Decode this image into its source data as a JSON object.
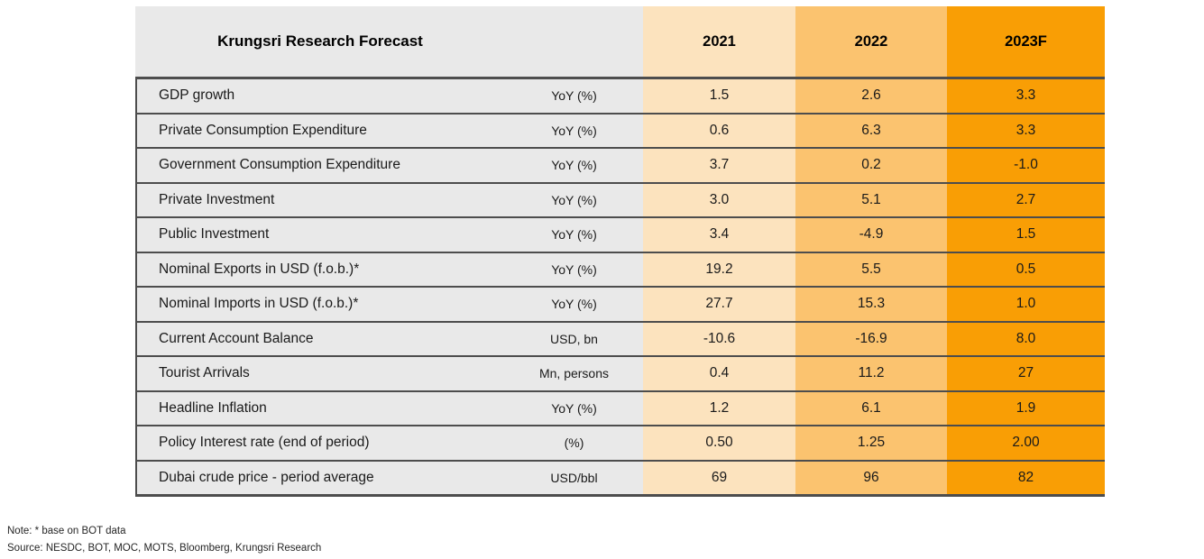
{
  "chart_data": {
    "type": "table",
    "title": "Krungsri Research Forecast",
    "year_columns": [
      "2021",
      "2022",
      "2023F"
    ],
    "rows": [
      {
        "label": "GDP growth",
        "unit": "YoY (%)",
        "values": [
          "1.5",
          "2.6",
          "3.3"
        ]
      },
      {
        "label": "Private Consumption Expenditure",
        "unit": "YoY (%)",
        "values": [
          "0.6",
          "6.3",
          "3.3"
        ]
      },
      {
        "label": "Government Consumption Expenditure",
        "unit": "YoY (%)",
        "values": [
          "3.7",
          "0.2",
          "-1.0"
        ]
      },
      {
        "label": "Private Investment",
        "unit": "YoY (%)",
        "values": [
          "3.0",
          "5.1",
          "2.7"
        ]
      },
      {
        "label": "Public Investment",
        "unit": "YoY (%)",
        "values": [
          "3.4",
          "-4.9",
          "1.5"
        ]
      },
      {
        "label": "Nominal Exports in USD (f.o.b.)*",
        "unit": "YoY (%)",
        "values": [
          "19.2",
          "5.5",
          "0.5"
        ]
      },
      {
        "label": "Nominal Imports in USD (f.o.b.)*",
        "unit": "YoY (%)",
        "values": [
          "27.7",
          "15.3",
          "1.0"
        ]
      },
      {
        "label": "Current Account Balance",
        "unit": "USD, bn",
        "values": [
          "-10.6",
          "-16.9",
          "8.0"
        ]
      },
      {
        "label": "Tourist Arrivals",
        "unit": "Mn, persons",
        "values": [
          "0.4",
          "11.2",
          "27"
        ]
      },
      {
        "label": "Headline Inflation",
        "unit": "YoY (%)",
        "values": [
          "1.2",
          "6.1",
          "1.9"
        ]
      },
      {
        "label": "Policy Interest rate (end of period)",
        "unit": "(%)",
        "values": [
          "0.50",
          "1.25",
          "2.00"
        ]
      },
      {
        "label": "Dubai crude price - period average",
        "unit": "USD/bbl",
        "values": [
          "69",
          "96",
          "82"
        ]
      }
    ]
  },
  "notes": {
    "note": "Note: * base on BOT data",
    "source": "Source: NESDC, BOT, MOC, MOTS, Bloomberg, Krungsri Research"
  },
  "colors": {
    "column_2021": "#FCE3BE",
    "column_2022": "#FBC36F",
    "column_2023f": "#F99E05",
    "header_gray": "#E9E9E9",
    "separator": "#4D4D4D",
    "text": "#1A1A1A"
  }
}
